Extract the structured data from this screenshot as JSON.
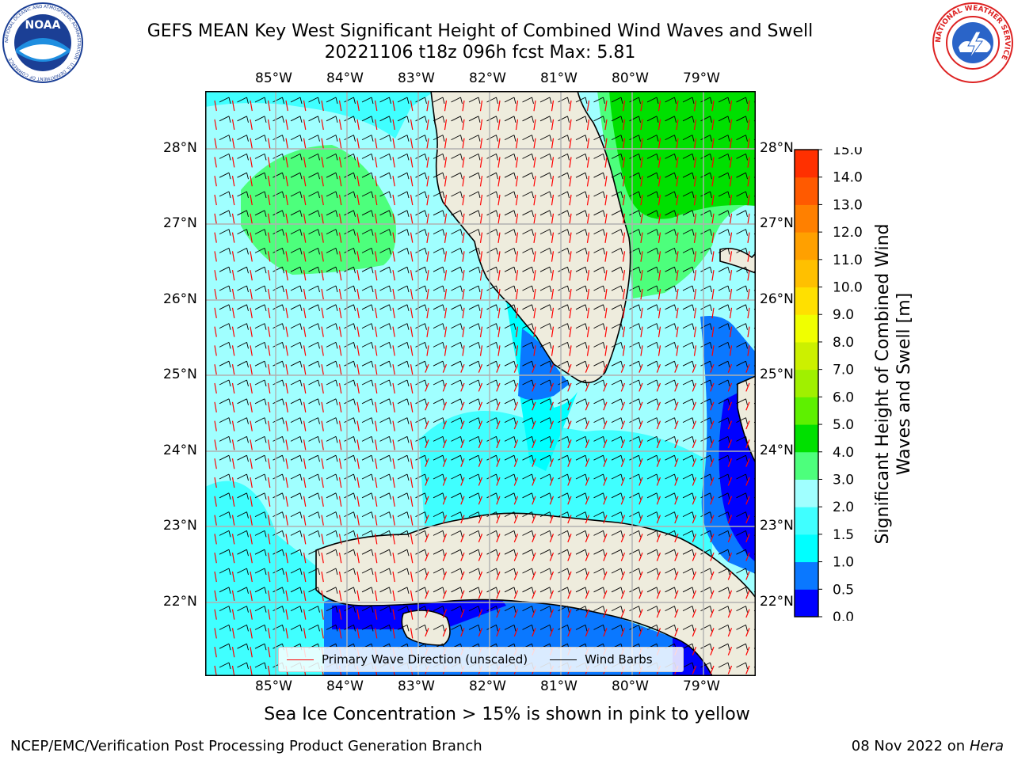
{
  "header": {
    "title_line1": "GEFS MEAN Key West Significant Height of Combined Wind Waves and Swell",
    "title_line2": "20221106 t18z 096h fcst   Max: 5.81",
    "noaa_logo_text": "NOAA",
    "noaa_ring_text": "NATIONAL OCEANIC AND ATMOSPHERIC ADMINISTRATION · U.S. DEPARTMENT OF COMMERCE",
    "nws_ring_text": "NATIONAL WEATHER SERVICE"
  },
  "map": {
    "lon_labels": [
      "85°W",
      "84°W",
      "83°W",
      "82°W",
      "81°W",
      "80°W",
      "79°W"
    ],
    "lat_labels": [
      "28°N",
      "27°N",
      "26°N",
      "25°N",
      "24°N",
      "23°N",
      "22°N"
    ],
    "legend": {
      "wave_label": "Primary Wave Direction (unscaled)",
      "wind_label": "Wind Barbs",
      "wave_color": "#ff0000",
      "wind_color": "#000000"
    },
    "colors": {
      "land": "#eeecdd",
      "grid": "#b0b0b0",
      "sea_low": "#0000ff",
      "sea_mid": "#00ffff"
    }
  },
  "colorbar": {
    "label": "Significant Height of Combined Wind Waves and Swell [m]",
    "ticks": [
      "0.0",
      "0.5",
      "1.0",
      "1.5",
      "2.0",
      "3.0",
      "4.0",
      "5.0",
      "6.0",
      "7.0",
      "8.0",
      "9.0",
      "10.0",
      "11.0",
      "12.0",
      "13.0",
      "14.0",
      "15.0"
    ],
    "colors": [
      "#0000ff",
      "#0a78ff",
      "#00ffff",
      "#40ffff",
      "#a0ffff",
      "#4dff7c",
      "#00e000",
      "#5ef000",
      "#a0f000",
      "#ccf000",
      "#f0ff00",
      "#ffe000",
      "#ffc000",
      "#ffa000",
      "#ff8000",
      "#ff5a00",
      "#ff3000",
      "#ff0000"
    ]
  },
  "note": "Sea Ice Concentration > 15% is shown in pink to yellow",
  "footer": {
    "left": "NCEP/EMC/Verification Post Processing Product Generation Branch",
    "right_prefix": "08 Nov 2022 on",
    "right_host": "Hera"
  }
}
